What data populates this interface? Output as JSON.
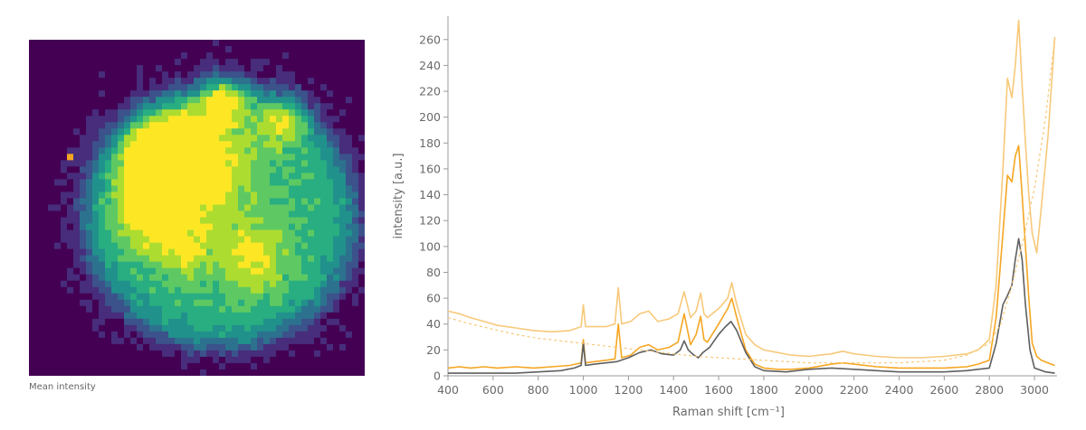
{
  "heatmap": {
    "caption": "Mean intensity",
    "colormap": [
      "#440154",
      "#472d7b",
      "#3b528b",
      "#2c728e",
      "#21918c",
      "#28ae80",
      "#5ec962",
      "#addc30",
      "#fde725",
      "#f5a623"
    ]
  },
  "chart_data": {
    "type": "line",
    "title": "",
    "xlabel": "Raman shift [cm⁻¹]",
    "ylabel": "intensity [a.u.]",
    "xlim": [
      400,
      3100
    ],
    "ylim": [
      0,
      278
    ],
    "xticks": [
      400,
      600,
      800,
      1000,
      1200,
      1400,
      1600,
      1800,
      2000,
      2200,
      2400,
      2600,
      2800,
      3000
    ],
    "yticks": [
      0,
      20,
      40,
      60,
      80,
      100,
      120,
      140,
      160,
      180,
      200,
      220,
      240,
      260
    ],
    "grid": false,
    "legend": "none",
    "series": [
      {
        "color": "#f7c97a",
        "style": "solid",
        "x": [
          400,
          450,
          500,
          560,
          620,
          700,
          780,
          860,
          940,
          990,
          1000,
          1010,
          1050,
          1100,
          1140,
          1155,
          1170,
          1210,
          1250,
          1290,
          1330,
          1380,
          1420,
          1447,
          1475,
          1500,
          1520,
          1535,
          1550,
          1600,
          1640,
          1658,
          1680,
          1720,
          1760,
          1800,
          1860,
          1920,
          2000,
          2100,
          2150,
          2200,
          2300,
          2400,
          2500,
          2600,
          2700,
          2750,
          2800,
          2830,
          2860,
          2880,
          2900,
          2915,
          2930,
          2945,
          2960,
          2975,
          2990,
          3010,
          3030,
          3060,
          3090
        ],
        "y": [
          50,
          48,
          45,
          42,
          39,
          37,
          35,
          34,
          35,
          38,
          55,
          38,
          38,
          38,
          40,
          68,
          40,
          42,
          48,
          50,
          42,
          44,
          48,
          65,
          45,
          50,
          64,
          48,
          45,
          52,
          60,
          72,
          55,
          32,
          24,
          20,
          18,
          16,
          15,
          17,
          19,
          17,
          15,
          14,
          14,
          15,
          17,
          20,
          28,
          70,
          160,
          230,
          215,
          240,
          275,
          225,
          180,
          140,
          110,
          95,
          130,
          185,
          262
        ]
      },
      {
        "color": "#f5a623",
        "style": "solid",
        "x": [
          400,
          450,
          500,
          560,
          620,
          700,
          780,
          860,
          940,
          990,
          1000,
          1010,
          1050,
          1100,
          1140,
          1155,
          1170,
          1210,
          1250,
          1290,
          1330,
          1380,
          1420,
          1447,
          1475,
          1500,
          1520,
          1535,
          1550,
          1600,
          1640,
          1658,
          1680,
          1720,
          1760,
          1800,
          1860,
          1920,
          2000,
          2100,
          2150,
          2200,
          2300,
          2400,
          2500,
          2600,
          2700,
          2750,
          2800,
          2830,
          2860,
          2880,
          2900,
          2915,
          2930,
          2945,
          2960,
          2975,
          2990,
          3010,
          3030,
          3060,
          3090
        ],
        "y": [
          6,
          7,
          6,
          7,
          6,
          7,
          6,
          7,
          8,
          10,
          28,
          10,
          11,
          12,
          13,
          40,
          14,
          16,
          22,
          24,
          20,
          22,
          26,
          48,
          24,
          32,
          46,
          28,
          26,
          40,
          52,
          60,
          45,
          20,
          9,
          6,
          5,
          5,
          6,
          9,
          10,
          9,
          7,
          6,
          6,
          6,
          7,
          9,
          12,
          45,
          110,
          155,
          150,
          170,
          178,
          140,
          100,
          60,
          25,
          15,
          12,
          10,
          8
        ]
      },
      {
        "color": "#5f5f5f",
        "style": "solid",
        "x": [
          400,
          500,
          600,
          700,
          800,
          900,
          960,
          990,
          1000,
          1010,
          1050,
          1100,
          1150,
          1200,
          1250,
          1300,
          1350,
          1400,
          1430,
          1447,
          1465,
          1490,
          1510,
          1530,
          1560,
          1600,
          1630,
          1655,
          1680,
          1720,
          1760,
          1800,
          1900,
          2000,
          2100,
          2200,
          2300,
          2400,
          2500,
          2600,
          2700,
          2750,
          2800,
          2830,
          2860,
          2880,
          2900,
          2915,
          2930,
          2945,
          2960,
          2980,
          3000,
          3050,
          3090
        ],
        "y": [
          2,
          2,
          2,
          2,
          3,
          4,
          6,
          8,
          25,
          8,
          9,
          10,
          11,
          14,
          18,
          20,
          17,
          16,
          20,
          27,
          20,
          16,
          14,
          18,
          22,
          32,
          38,
          42,
          35,
          18,
          7,
          4,
          3,
          5,
          6,
          5,
          4,
          3,
          3,
          3,
          4,
          5,
          6,
          25,
          55,
          62,
          70,
          90,
          106,
          90,
          55,
          20,
          6,
          3,
          2
        ]
      },
      {
        "color": "#f7c97a",
        "style": "dashed",
        "x": [
          400,
          500,
          600,
          700,
          800,
          900,
          1000,
          1100,
          1200,
          1300,
          1400,
          1500,
          1600,
          1700,
          1800,
          1900,
          2000,
          2200,
          2400,
          2600,
          2700,
          2800,
          2850,
          2900,
          2950,
          3000,
          3050,
          3090
        ],
        "y": [
          45,
          40,
          36,
          32,
          29,
          27,
          25,
          23,
          21,
          19,
          17,
          15,
          14,
          13,
          12,
          11,
          10,
          10,
          10,
          12,
          16,
          25,
          40,
          70,
          105,
          145,
          200,
          262
        ]
      }
    ]
  }
}
